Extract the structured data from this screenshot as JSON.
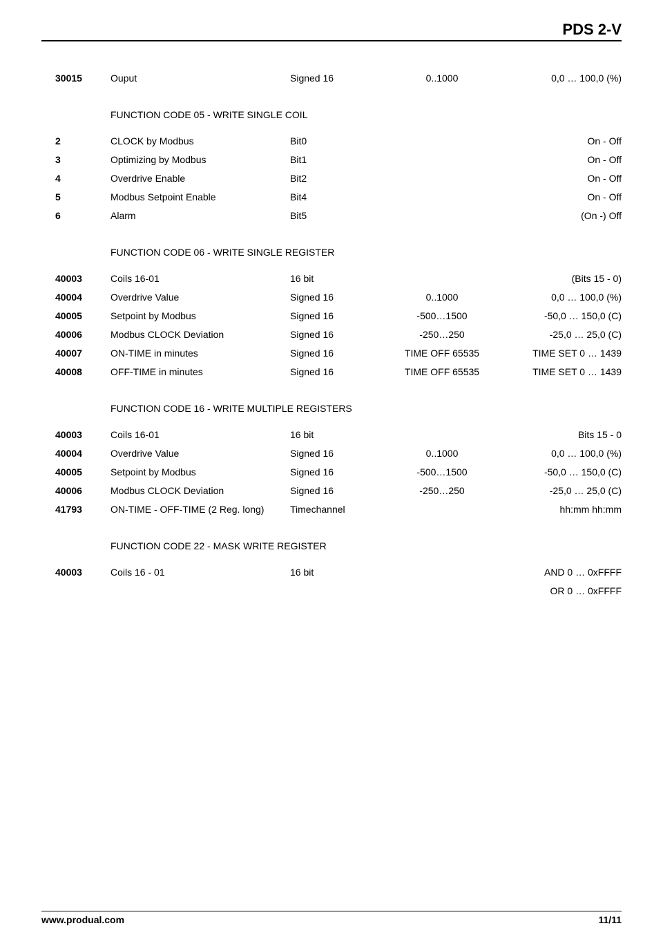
{
  "docTitle": "PDS 2-V",
  "footer": {
    "left": "www.produal.com",
    "right": "11/11"
  },
  "sections": [
    {
      "header": null,
      "rows": [
        {
          "addr": "30015",
          "name": "Ouput",
          "type": "Signed 16",
          "range": "0..1000",
          "desc": "0,0 … 100,0 (%)"
        }
      ]
    },
    {
      "header": "FUNCTION CODE 05 - WRITE SINGLE COIL",
      "rows": [
        {
          "addr": "2",
          "name": "CLOCK by Modbus",
          "type": "Bit0",
          "range": "",
          "desc": "On - Off"
        },
        {
          "addr": "3",
          "name": "Optimizing by Modbus",
          "type": "Bit1",
          "range": "",
          "desc": "On - Off"
        },
        {
          "addr": "4",
          "name": "Overdrive Enable",
          "type": "Bit2",
          "range": "",
          "desc": "On - Off"
        },
        {
          "addr": "5",
          "name": "Modbus Setpoint Enable",
          "type": "Bit4",
          "range": "",
          "desc": "On - Off"
        },
        {
          "addr": "6",
          "name": "Alarm",
          "type": "Bit5",
          "range": "",
          "desc": "(On -) Off"
        }
      ]
    },
    {
      "header": "FUNCTION CODE 06 - WRITE SINGLE REGISTER",
      "rows": [
        {
          "addr": "40003",
          "name": "Coils 16-01",
          "type": "16 bit",
          "range": "",
          "desc": "(Bits 15 - 0)"
        },
        {
          "addr": "40004",
          "name": "Overdrive Value",
          "type": "Signed 16",
          "range": "0..1000",
          "desc": "0,0 … 100,0 (%)"
        },
        {
          "addr": "40005",
          "name": "Setpoint by Modbus",
          "type": "Signed 16",
          "range": "-500…1500",
          "desc": "-50,0 … 150,0 (C)"
        },
        {
          "addr": "40006",
          "name": "Modbus CLOCK Deviation",
          "type": "Signed 16",
          "range": "-250…250",
          "desc": "-25,0 … 25,0 (C)"
        },
        {
          "addr": "40007",
          "name": "ON-TIME in minutes",
          "type": "Signed 16",
          "range": "TIME OFF 65535",
          "desc": "TIME SET 0 … 1439"
        },
        {
          "addr": "40008",
          "name": "OFF-TIME in minutes",
          "type": "Signed 16",
          "range": "TIME OFF 65535",
          "desc": "TIME SET 0 … 1439"
        }
      ]
    },
    {
      "header": "FUNCTION CODE 16 - WRITE MULTIPLE REGISTERS",
      "rows": [
        {
          "addr": "40003",
          "name": "Coils 16-01",
          "type": "16 bit",
          "range": "",
          "desc": "Bits 15 - 0"
        },
        {
          "addr": "40004",
          "name": "Overdrive Value",
          "type": "Signed 16",
          "range": "0..1000",
          "desc": "0,0 … 100,0 (%)"
        },
        {
          "addr": "40005",
          "name": "Setpoint by Modbus",
          "type": "Signed 16",
          "range": "-500…1500",
          "desc": "-50,0 … 150,0 (C)"
        },
        {
          "addr": "40006",
          "name": "Modbus CLOCK Deviation",
          "type": "Signed 16",
          "range": "-250…250",
          "desc": "-25,0 … 25,0 (C)"
        },
        {
          "addr": "41793",
          "name": "ON-TIME - OFF-TIME (2 Reg. long)",
          "type": "Timechannel",
          "range": "",
          "desc": "hh:mm  hh:mm"
        }
      ]
    },
    {
      "header": "FUNCTION CODE 22 - MASK WRITE REGISTER",
      "rows": [
        {
          "addr": "40003",
          "name": "Coils 16 - 01",
          "type": "16 bit",
          "range": "",
          "desc": "AND 0 … 0xFFFF"
        },
        {
          "addr": "",
          "name": "",
          "type": "",
          "range": "",
          "desc": "OR 0 … 0xFFFF"
        }
      ]
    }
  ]
}
